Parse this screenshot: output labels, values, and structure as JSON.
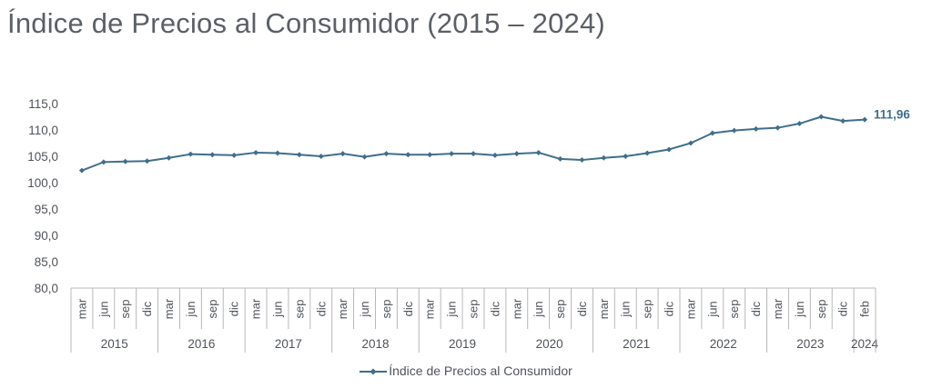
{
  "chart_data": {
    "type": "line",
    "title": "Índice de Precios al Consumidor (2015 – 2024)",
    "ylim": [
      80,
      115
    ],
    "yticks": [
      "115,0",
      "110,0",
      "105,0",
      "100,0",
      "95,0",
      "90,0",
      "85,0",
      "80,0"
    ],
    "ytick_values": [
      115,
      110,
      105,
      100,
      95,
      90,
      85,
      80
    ],
    "categories": [
      "mar",
      "jun",
      "sep",
      "dic",
      "mar",
      "jun",
      "sep",
      "dic",
      "mar",
      "jun",
      "sep",
      "dic",
      "mar",
      "jun",
      "sep",
      "dic",
      "mar",
      "jun",
      "sep",
      "dic",
      "mar",
      "jun",
      "sep",
      "dic",
      "mar",
      "jun",
      "sep",
      "dic",
      "mar",
      "jun",
      "sep",
      "dic",
      "mar",
      "jun",
      "sep",
      "dic",
      "feb"
    ],
    "year_groups": [
      {
        "label": "2015",
        "count": 4
      },
      {
        "label": "2016",
        "count": 4
      },
      {
        "label": "2017",
        "count": 4
      },
      {
        "label": "2018",
        "count": 4
      },
      {
        "label": "2019",
        "count": 4
      },
      {
        "label": "2020",
        "count": 4
      },
      {
        "label": "2021",
        "count": 4
      },
      {
        "label": "2022",
        "count": 4
      },
      {
        "label": "2023",
        "count": 4
      },
      {
        "label": "2024",
        "count": 1
      }
    ],
    "series": [
      {
        "name": "Índice de Precios al Consumidor",
        "values": [
          102.3,
          103.9,
          104.0,
          104.1,
          104.7,
          105.4,
          105.3,
          105.2,
          105.7,
          105.6,
          105.3,
          105.0,
          105.5,
          104.9,
          105.5,
          105.3,
          105.3,
          105.5,
          105.5,
          105.2,
          105.5,
          105.7,
          104.5,
          104.3,
          104.7,
          105.0,
          105.6,
          106.3,
          107.5,
          109.4,
          109.9,
          110.2,
          110.4,
          111.2,
          112.5,
          111.7,
          111.96
        ]
      }
    ],
    "last_value_label": "111,96",
    "colors": {
      "line": "#3f6e8c",
      "axis": "#b8b8b8",
      "text": "#4f5359",
      "label": "#3f6e8c"
    }
  }
}
